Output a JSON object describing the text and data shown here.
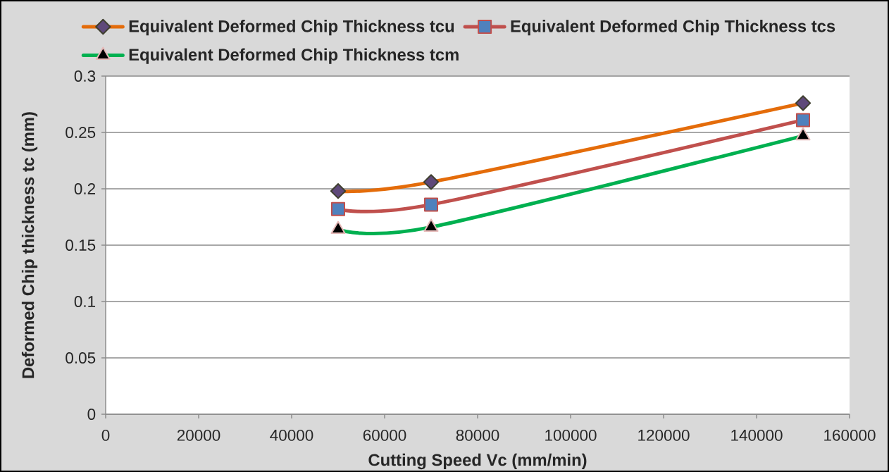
{
  "chart_data": {
    "type": "line",
    "xlabel": "Cutting Speed Vc (mm/min)",
    "ylabel": "Deformed Chip thickness tc (mm)",
    "x": [
      50000,
      70000,
      150000
    ],
    "series": [
      {
        "name": "Equivalent Deformed Chip Thickness tcu",
        "color": "#e46c0a",
        "marker": "diamond",
        "values": [
          0.198,
          0.206,
          0.276
        ]
      },
      {
        "name": "Equivalent Deformed Chip Thickness tcs",
        "color": "#c0504d",
        "marker": "square",
        "values": [
          0.182,
          0.186,
          0.261
        ]
      },
      {
        "name": "Equivalent Deformed Chip Thickness tcm",
        "color": "#00b050",
        "marker": "triangle",
        "values": [
          0.164,
          0.166,
          0.247
        ]
      }
    ],
    "xlim": [
      0,
      160000
    ],
    "xticks": [
      0,
      20000,
      40000,
      60000,
      80000,
      100000,
      120000,
      140000,
      160000
    ],
    "ylim": [
      0,
      0.3
    ],
    "yticks": [
      0,
      0.05,
      0.1,
      0.15,
      0.2,
      0.25,
      0.3
    ],
    "grid": "y",
    "legend": "top"
  }
}
